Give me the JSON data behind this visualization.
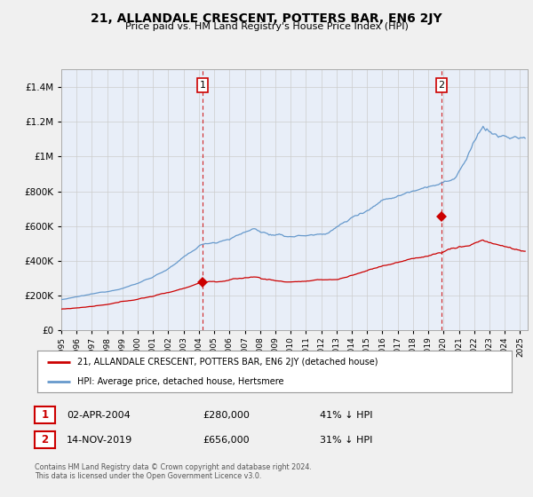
{
  "title": "21, ALLANDALE CRESCENT, POTTERS BAR, EN6 2JY",
  "subtitle": "Price paid vs. HM Land Registry's House Price Index (HPI)",
  "legend_line1": "21, ALLANDALE CRESCENT, POTTERS BAR, EN6 2JY (detached house)",
  "legend_line2": "HPI: Average price, detached house, Hertsmere",
  "footer": "Contains HM Land Registry data © Crown copyright and database right 2024.\nThis data is licensed under the Open Government Licence v3.0.",
  "sale1_label": "1",
  "sale1_date": "02-APR-2004",
  "sale1_price": "£280,000",
  "sale1_hpi": "41% ↓ HPI",
  "sale2_label": "2",
  "sale2_date": "14-NOV-2019",
  "sale2_price": "£656,000",
  "sale2_hpi": "31% ↓ HPI",
  "vline1_x": 2004.25,
  "vline2_x": 2019.87,
  "marker1_x": 2004.25,
  "marker1_y": 280000,
  "marker2_x": 2019.87,
  "marker2_y": 656000,
  "red_color": "#cc0000",
  "blue_color": "#6699cc",
  "plot_bg_color": "#e8eef8",
  "background_color": "#f0f0f0",
  "ylim": [
    0,
    1500000
  ],
  "xlim_start": 1995.0,
  "xlim_end": 2025.5
}
